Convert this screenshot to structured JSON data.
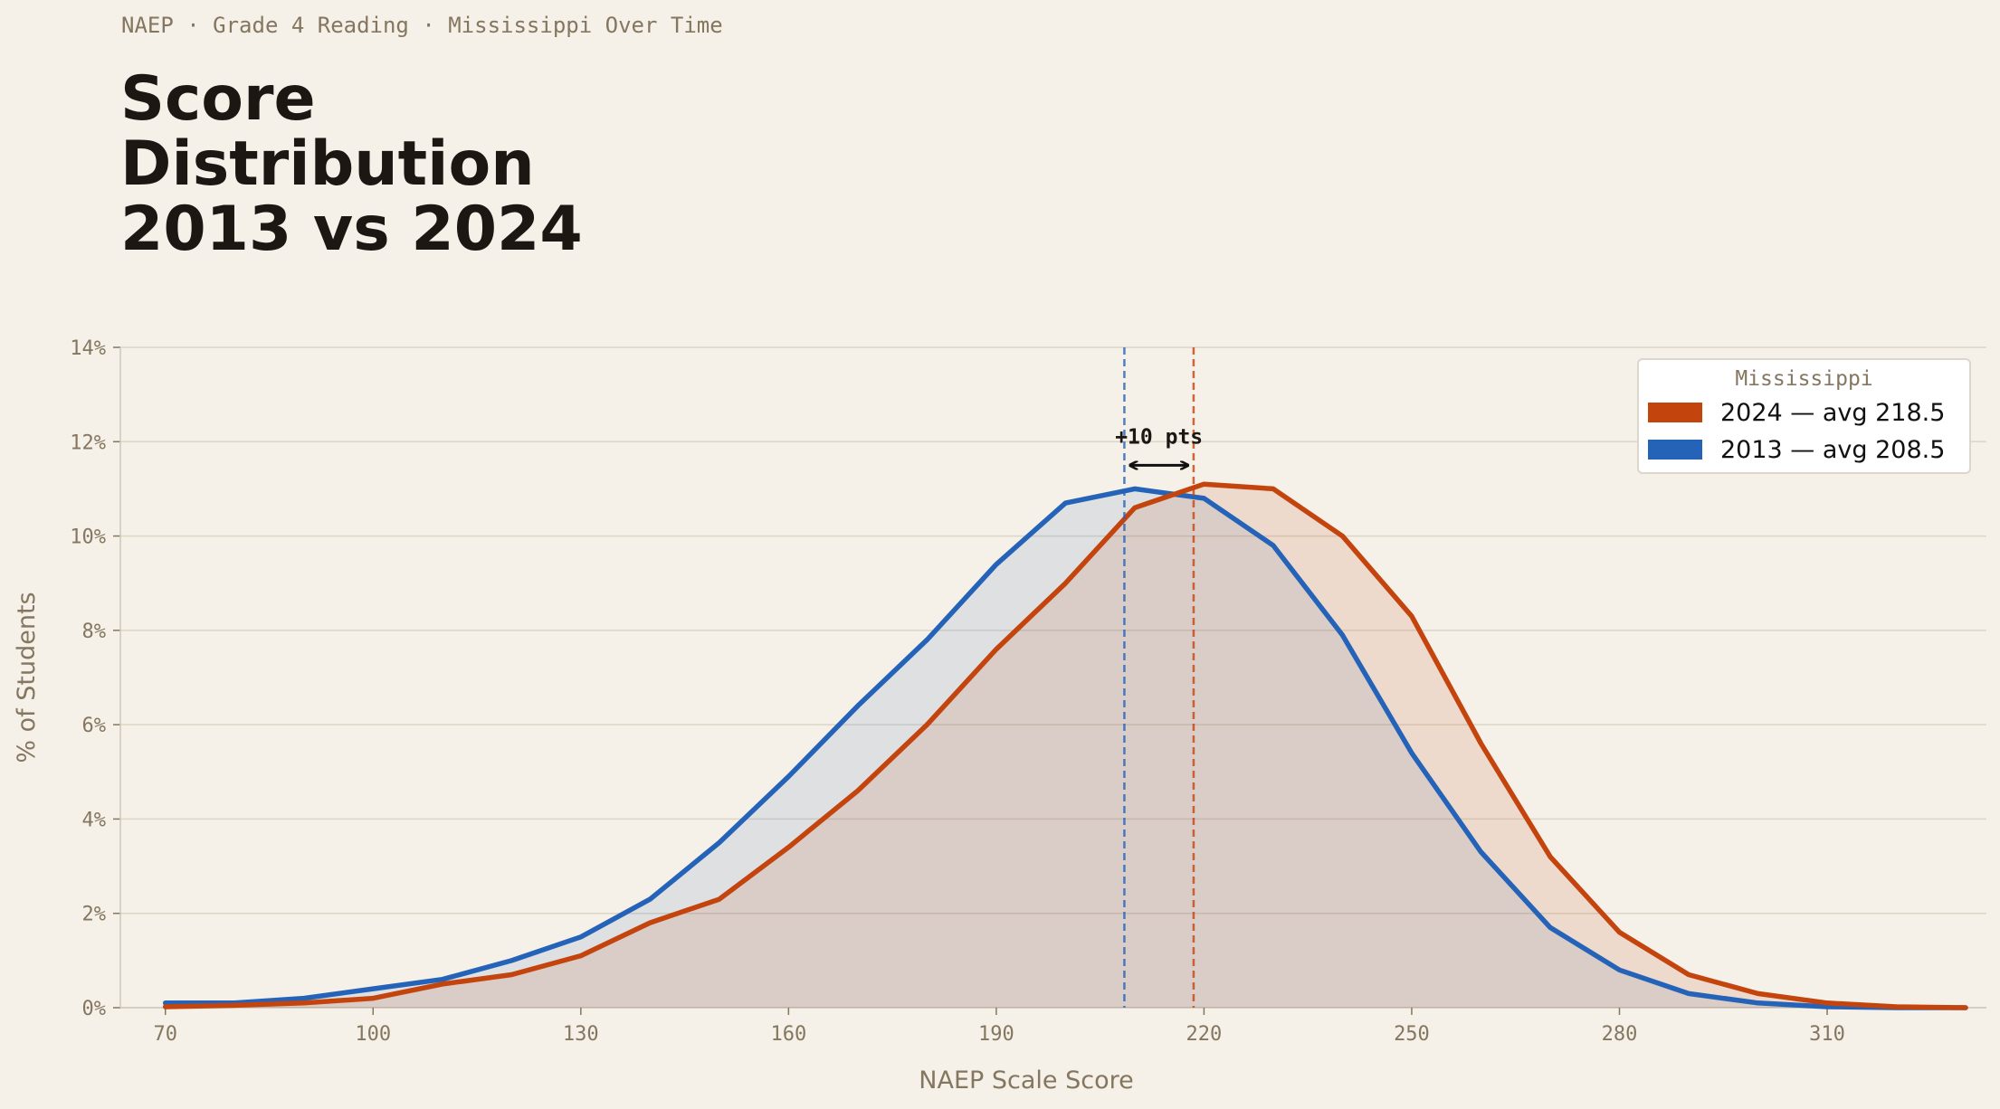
{
  "header": {
    "kicker": "NAEP · Grade 4 Reading · Mississippi Over Time",
    "title_lines": [
      "Score",
      "Distribution",
      "2013 vs 2024"
    ]
  },
  "colors": {
    "background": "#f5f0e8",
    "series_2024": "#c4440e",
    "series_2013": "#2563b8",
    "grid": "#dcd6c6",
    "text_muted": "#857660",
    "text_dark": "#1c1712"
  },
  "legend": {
    "title": "Mississippi",
    "items": [
      {
        "label": "2024  —  avg 218.5",
        "color": "#c4440e"
      },
      {
        "label": "2013  —  avg 208.5",
        "color": "#2563b8"
      }
    ]
  },
  "annotation": {
    "text": "+10 pts"
  },
  "chart_data": {
    "type": "area",
    "title": "Score Distribution 2013 vs 2024",
    "xlabel": "NAEP Scale Score",
    "ylabel": "% of Students",
    "xlim": [
      63.5,
      333
    ],
    "ylim": [
      0,
      14
    ],
    "x_ticks": [
      70,
      100,
      130,
      160,
      190,
      220,
      250,
      280,
      310
    ],
    "y_ticks": [
      0,
      2,
      4,
      6,
      8,
      10,
      12,
      14
    ],
    "y_tick_labels": [
      "0%",
      "2%",
      "4%",
      "6%",
      "8%",
      "10%",
      "12%",
      "14%"
    ],
    "grid": true,
    "legend_position": "top-right",
    "x": [
      70,
      80,
      90,
      100,
      110,
      120,
      130,
      140,
      150,
      160,
      170,
      180,
      190,
      200,
      210,
      220,
      230,
      240,
      250,
      260,
      270,
      280,
      290,
      300,
      310,
      320,
      330
    ],
    "series": [
      {
        "name": "2013",
        "mean": 208.5,
        "values": [
          0.1,
          0.1,
          0.2,
          0.4,
          0.6,
          1.0,
          1.5,
          2.3,
          3.5,
          4.9,
          6.4,
          7.8,
          9.4,
          10.7,
          11.0,
          10.8,
          9.8,
          7.9,
          5.4,
          3.3,
          1.7,
          0.8,
          0.3,
          0.1,
          0.02,
          0.0,
          0.0
        ]
      },
      {
        "name": "2024",
        "mean": 218.5,
        "values": [
          0.02,
          0.05,
          0.1,
          0.2,
          0.5,
          0.7,
          1.1,
          1.8,
          2.3,
          3.4,
          4.6,
          6.0,
          7.6,
          9.0,
          10.6,
          11.1,
          11.0,
          10.0,
          8.3,
          5.6,
          3.2,
          1.6,
          0.7,
          0.3,
          0.1,
          0.02,
          0.0
        ]
      }
    ],
    "annotations": [
      {
        "text": "+10 pts",
        "from": 208.5,
        "to": 218.5,
        "y": 11.5
      }
    ]
  }
}
